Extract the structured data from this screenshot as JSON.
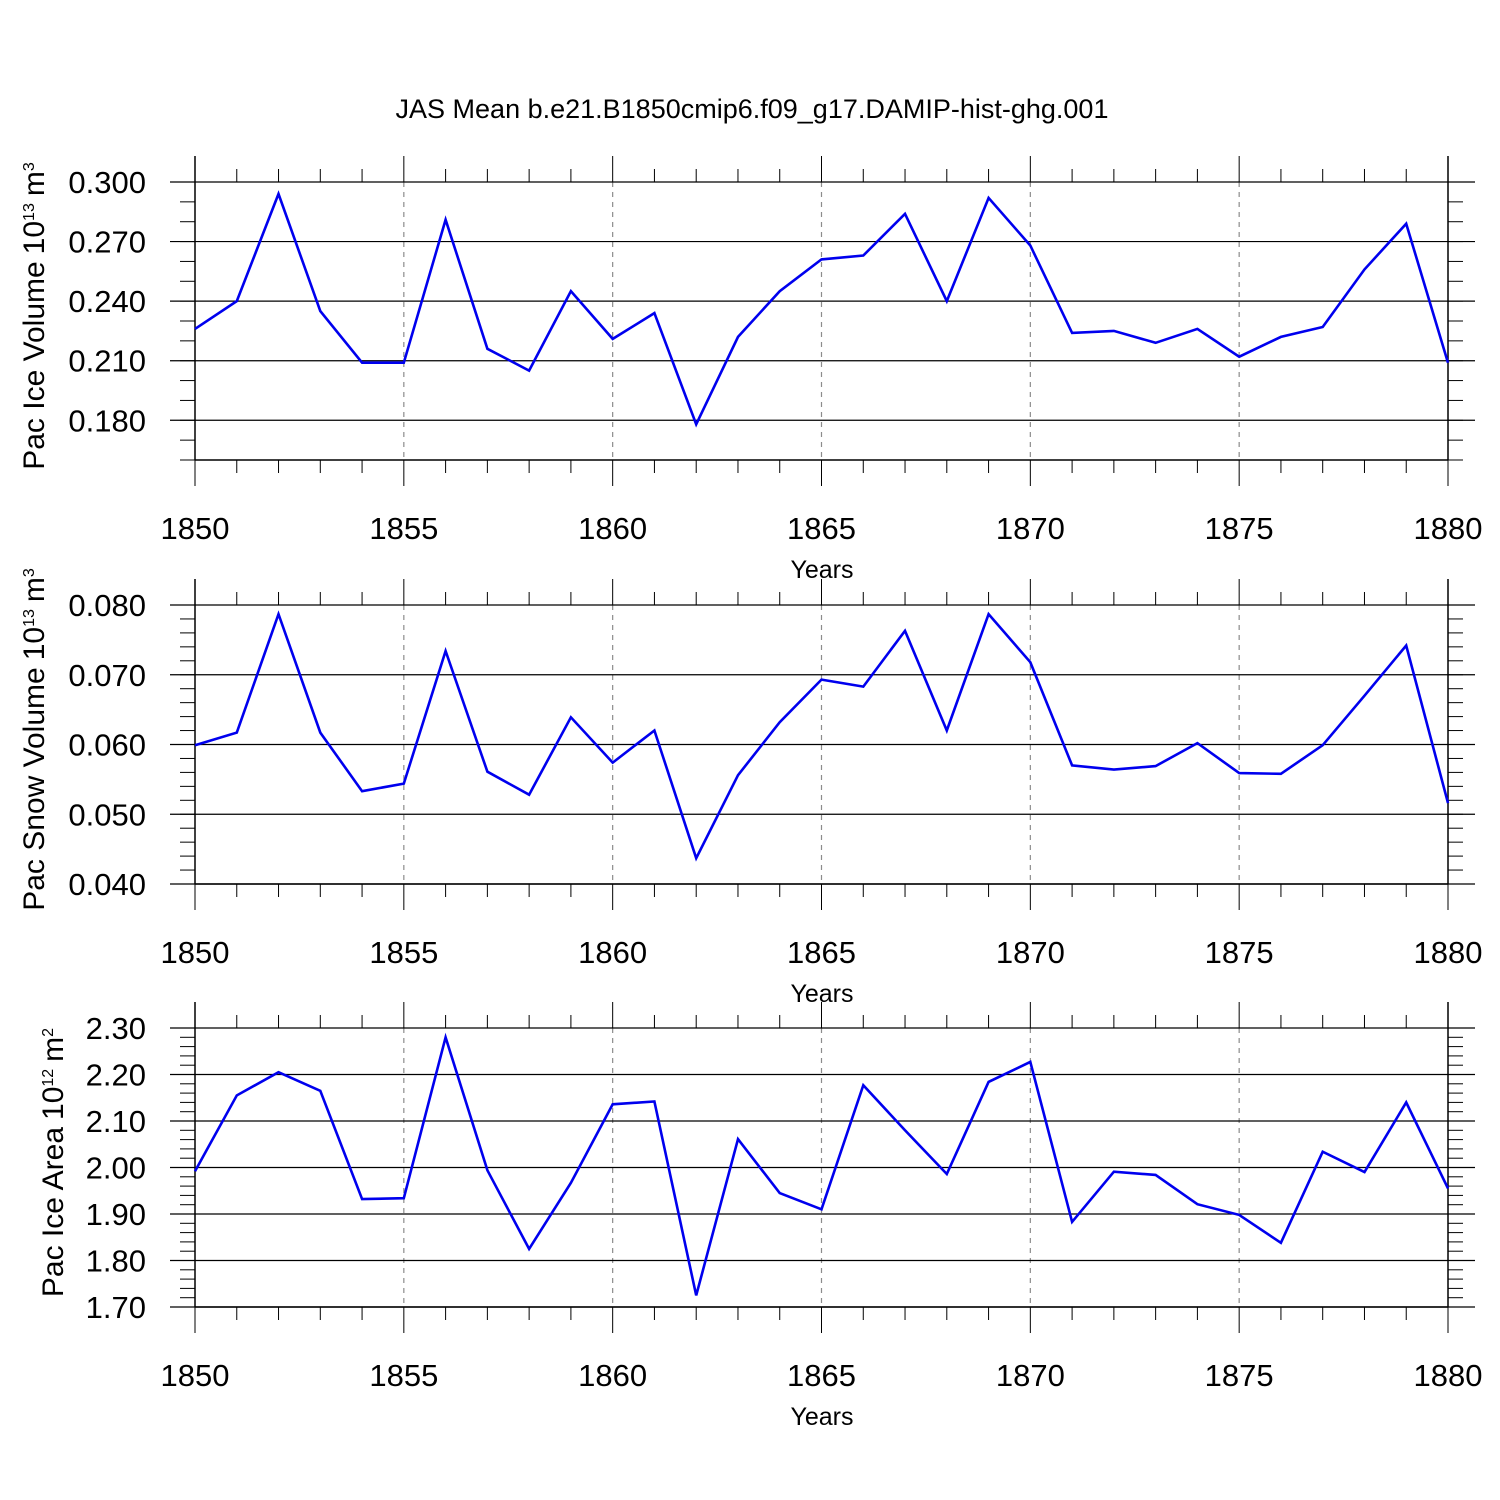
{
  "title": "JAS Mean b.e21.B1850cmip6.f09_g17.DAMIP-hist-ghg.001",
  "chart_data": [
    {
      "type": "line",
      "ylabel": "Pac Ice Volume",
      "unit_base": "10",
      "unit_exp": "13",
      "unit_name": "m",
      "unit_pow": "3",
      "xlabel": "Years",
      "xlim": [
        1850,
        1880
      ],
      "ylim": [
        0.16,
        0.3
      ],
      "yticks": [
        "0.300",
        "0.270",
        "0.240",
        "0.210",
        "0.180"
      ],
      "ytick_values": [
        0.3,
        0.27,
        0.24,
        0.21,
        0.18
      ],
      "xticks": [
        "1850",
        "1855",
        "1860",
        "1865",
        "1870",
        "1875",
        "1880"
      ],
      "line_color": "#0000ee",
      "x": [
        1850,
        1851,
        1852,
        1853,
        1854,
        1855,
        1856,
        1857,
        1858,
        1859,
        1860,
        1861,
        1862,
        1863,
        1864,
        1865,
        1866,
        1867,
        1868,
        1869,
        1870,
        1871,
        1872,
        1873,
        1874,
        1875,
        1876,
        1877,
        1878,
        1879,
        1880
      ],
      "values": [
        0.226,
        0.24,
        0.294,
        0.235,
        0.209,
        0.209,
        0.281,
        0.216,
        0.205,
        0.245,
        0.221,
        0.234,
        0.178,
        0.222,
        0.245,
        0.261,
        0.263,
        0.284,
        0.24,
        0.292,
        0.268,
        0.224,
        0.225,
        0.219,
        0.226,
        0.212,
        0.222,
        0.227,
        0.256,
        0.279,
        0.209
      ]
    },
    {
      "type": "line",
      "ylabel": "Pac Snow Volume",
      "unit_base": "10",
      "unit_exp": "13",
      "unit_name": "m",
      "unit_pow": "3",
      "xlabel": "Years",
      "xlim": [
        1850,
        1880
      ],
      "ylim": [
        0.04,
        0.08
      ],
      "yticks": [
        "0.080",
        "0.070",
        "0.060",
        "0.050",
        "0.040"
      ],
      "ytick_values": [
        0.08,
        0.07,
        0.06,
        0.05,
        0.04
      ],
      "xticks": [
        "1850",
        "1855",
        "1860",
        "1865",
        "1870",
        "1875",
        "1880"
      ],
      "line_color": "#0000ee",
      "x": [
        1850,
        1851,
        1852,
        1853,
        1854,
        1855,
        1856,
        1857,
        1858,
        1859,
        1860,
        1861,
        1862,
        1863,
        1864,
        1865,
        1866,
        1867,
        1868,
        1869,
        1870,
        1871,
        1872,
        1873,
        1874,
        1875,
        1876,
        1877,
        1878,
        1879,
        1880
      ],
      "values": [
        0.0599,
        0.0617,
        0.0787,
        0.0617,
        0.0533,
        0.0544,
        0.0734,
        0.0561,
        0.0528,
        0.0639,
        0.0574,
        0.062,
        0.0437,
        0.0556,
        0.0632,
        0.0693,
        0.0683,
        0.0763,
        0.062,
        0.0787,
        0.0718,
        0.057,
        0.0564,
        0.0569,
        0.0602,
        0.0559,
        0.0558,
        0.0599,
        0.067,
        0.0742,
        0.0516
      ]
    },
    {
      "type": "line",
      "ylabel": "Pac Ice Area",
      "unit_base": "10",
      "unit_exp": "12",
      "unit_name": "m",
      "unit_pow": "2",
      "xlabel": "Years",
      "xlim": [
        1850,
        1880
      ],
      "ylim": [
        1.7,
        2.3
      ],
      "yticks": [
        "2.30",
        "2.20",
        "2.10",
        "2.00",
        "1.90",
        "1.80",
        "1.70"
      ],
      "ytick_values": [
        2.3,
        2.2,
        2.1,
        2.0,
        1.9,
        1.8,
        1.7
      ],
      "xticks": [
        "1850",
        "1855",
        "1860",
        "1865",
        "1870",
        "1875",
        "1880"
      ],
      "line_color": "#0000ee",
      "x": [
        1850,
        1851,
        1852,
        1853,
        1854,
        1855,
        1856,
        1857,
        1858,
        1859,
        1860,
        1861,
        1862,
        1863,
        1864,
        1865,
        1866,
        1867,
        1868,
        1869,
        1870,
        1871,
        1872,
        1873,
        1874,
        1875,
        1876,
        1877,
        1878,
        1879,
        1880
      ],
      "values": [
        1.992,
        2.155,
        2.205,
        2.165,
        1.932,
        1.934,
        2.28,
        1.994,
        1.825,
        1.967,
        2.136,
        2.142,
        1.725,
        2.061,
        1.945,
        1.91,
        2.177,
        2.08,
        1.986,
        2.184,
        2.227,
        1.883,
        1.991,
        1.984,
        1.921,
        1.898,
        1.838,
        2.034,
        1.99,
        2.14,
        1.955
      ]
    }
  ]
}
